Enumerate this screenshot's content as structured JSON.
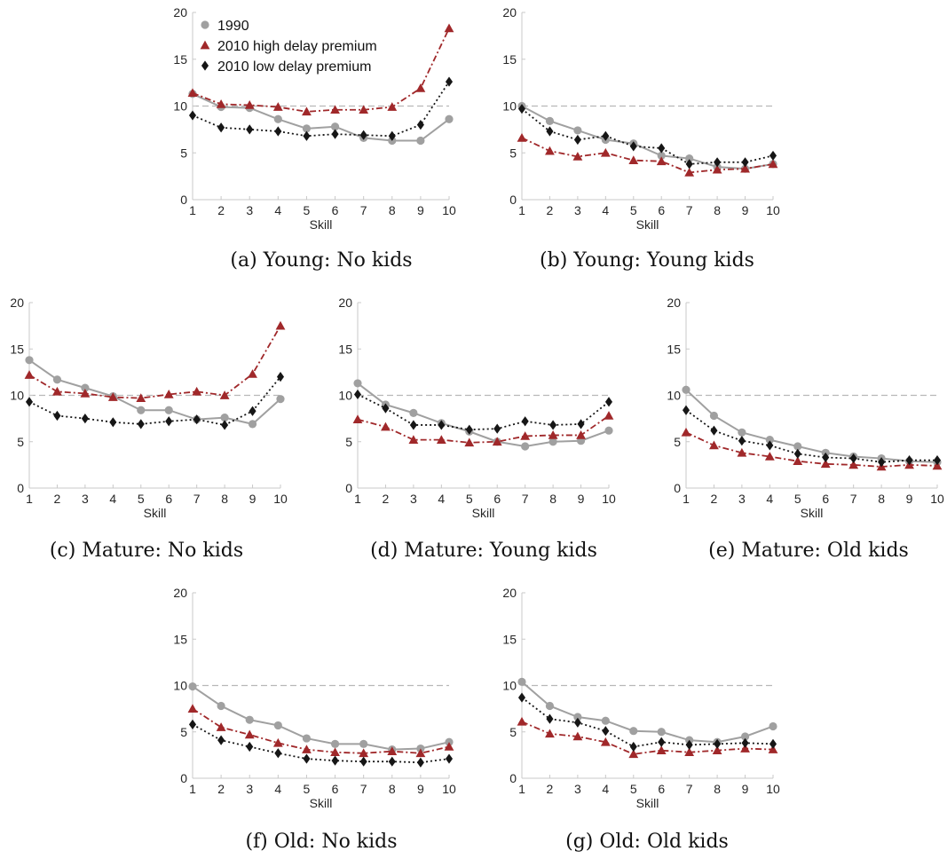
{
  "colors": {
    "s1990": "#a0a0a0",
    "high": "#a0282a",
    "low": "#161616",
    "ref": "#b8b8b8",
    "axis": "#c8c8c8"
  },
  "legend": [
    "1990",
    "2010 high delay premium",
    "2010 low delay premium"
  ],
  "chart_data": [
    {
      "type": "line",
      "caption": "(a) Young: No kids",
      "xlabel": "Skill",
      "x": [
        1,
        2,
        3,
        4,
        5,
        6,
        7,
        8,
        9,
        10
      ],
      "xlim": [
        1,
        10
      ],
      "ylim": [
        0,
        20
      ],
      "yticks": [
        0,
        5,
        10,
        15,
        20
      ],
      "reference_line": 10,
      "legend": "top-left",
      "series": [
        {
          "name": "1990",
          "values": [
            11.3,
            9.9,
            9.8,
            8.6,
            7.6,
            7.8,
            6.6,
            6.3,
            6.3,
            8.6
          ]
        },
        {
          "name": "2010 high delay premium",
          "values": [
            11.4,
            10.2,
            10.1,
            9.9,
            9.4,
            9.6,
            9.6,
            9.9,
            11.9,
            18.3
          ]
        },
        {
          "name": "2010 low delay premium",
          "values": [
            9.0,
            7.7,
            7.5,
            7.3,
            6.8,
            7.0,
            6.9,
            6.8,
            8.0,
            12.6
          ]
        }
      ]
    },
    {
      "type": "line",
      "caption": "(b) Young: Young kids",
      "xlabel": "Skill",
      "x": [
        1,
        2,
        3,
        4,
        5,
        6,
        7,
        8,
        9,
        10
      ],
      "xlim": [
        1,
        10
      ],
      "ylim": [
        0,
        20
      ],
      "yticks": [
        0,
        5,
        10,
        15,
        20
      ],
      "reference_line": 10,
      "series": [
        {
          "name": "1990",
          "values": [
            10.0,
            8.4,
            7.4,
            6.4,
            6.0,
            4.7,
            4.4,
            3.5,
            3.3,
            3.8
          ]
        },
        {
          "name": "2010 high delay premium",
          "values": [
            6.6,
            5.2,
            4.6,
            5.0,
            4.2,
            4.1,
            2.9,
            3.2,
            3.3,
            3.8
          ]
        },
        {
          "name": "2010 low delay premium",
          "values": [
            9.7,
            7.3,
            6.4,
            6.8,
            5.7,
            5.5,
            3.8,
            4.0,
            4.0,
            4.7
          ]
        }
      ]
    },
    {
      "type": "line",
      "caption": "(c) Mature: No kids",
      "xlabel": "Skill",
      "x": [
        1,
        2,
        3,
        4,
        5,
        6,
        7,
        8,
        9,
        10
      ],
      "xlim": [
        1,
        10
      ],
      "ylim": [
        0,
        20
      ],
      "yticks": [
        0,
        5,
        10,
        15,
        20
      ],
      "reference_line": 10,
      "series": [
        {
          "name": "1990",
          "values": [
            13.8,
            11.7,
            10.8,
            9.9,
            8.4,
            8.4,
            7.4,
            7.6,
            6.9,
            9.6
          ]
        },
        {
          "name": "2010 high delay premium",
          "values": [
            12.2,
            10.4,
            10.2,
            9.8,
            9.7,
            10.1,
            10.4,
            10.0,
            12.3,
            17.5
          ]
        },
        {
          "name": "2010 low delay premium",
          "values": [
            9.3,
            7.8,
            7.5,
            7.1,
            6.9,
            7.2,
            7.4,
            6.8,
            8.3,
            12.0
          ]
        }
      ]
    },
    {
      "type": "line",
      "caption": "(d) Mature: Young kids",
      "xlabel": "Skill",
      "x": [
        1,
        2,
        3,
        4,
        5,
        6,
        7,
        8,
        9,
        10
      ],
      "xlim": [
        1,
        10
      ],
      "ylim": [
        0,
        20
      ],
      "yticks": [
        0,
        5,
        10,
        15,
        20
      ],
      "reference_line": 10,
      "series": [
        {
          "name": "1990",
          "values": [
            11.3,
            9.0,
            8.1,
            7.0,
            6.1,
            5.0,
            4.5,
            5.0,
            5.1,
            6.2
          ]
        },
        {
          "name": "2010 high delay premium",
          "values": [
            7.4,
            6.6,
            5.2,
            5.2,
            4.9,
            5.0,
            5.6,
            5.7,
            5.7,
            7.8
          ]
        },
        {
          "name": "2010 low delay premium",
          "values": [
            10.1,
            8.6,
            6.8,
            6.8,
            6.3,
            6.4,
            7.2,
            6.8,
            6.9,
            9.3
          ]
        }
      ]
    },
    {
      "type": "line",
      "caption": "(e) Mature: Old kids",
      "xlabel": "Skill",
      "x": [
        1,
        2,
        3,
        4,
        5,
        6,
        7,
        8,
        9,
        10
      ],
      "xlim": [
        1,
        10
      ],
      "ylim": [
        0,
        20
      ],
      "yticks": [
        0,
        5,
        10,
        15,
        20
      ],
      "reference_line": 10,
      "series": [
        {
          "name": "1990",
          "values": [
            10.6,
            7.8,
            6.0,
            5.2,
            4.5,
            3.8,
            3.4,
            3.2,
            2.9,
            2.8
          ]
        },
        {
          "name": "2010 high delay premium",
          "values": [
            6.0,
            4.6,
            3.8,
            3.4,
            2.9,
            2.6,
            2.5,
            2.3,
            2.5,
            2.4
          ]
        },
        {
          "name": "2010 low delay premium",
          "values": [
            8.4,
            6.2,
            5.1,
            4.6,
            3.7,
            3.3,
            3.2,
            2.8,
            3.0,
            3.0
          ]
        }
      ]
    },
    {
      "type": "line",
      "caption": "(f) Old: No kids",
      "xlabel": "Skill",
      "x": [
        1,
        2,
        3,
        4,
        5,
        6,
        7,
        8,
        9,
        10
      ],
      "xlim": [
        1,
        10
      ],
      "ylim": [
        0,
        20
      ],
      "yticks": [
        0,
        5,
        10,
        15,
        20
      ],
      "reference_line": 10,
      "series": [
        {
          "name": "1990",
          "values": [
            9.9,
            7.8,
            6.3,
            5.7,
            4.3,
            3.7,
            3.7,
            3.1,
            3.2,
            3.9
          ]
        },
        {
          "name": "2010 high delay premium",
          "values": [
            7.5,
            5.5,
            4.7,
            3.8,
            3.1,
            2.8,
            2.7,
            2.9,
            2.7,
            3.4
          ]
        },
        {
          "name": "2010 low delay premium",
          "values": [
            5.8,
            4.1,
            3.4,
            2.7,
            2.1,
            1.9,
            1.8,
            1.8,
            1.7,
            2.1
          ]
        }
      ]
    },
    {
      "type": "line",
      "caption": "(g) Old: Old kids",
      "xlabel": "Skill",
      "x": [
        1,
        2,
        3,
        4,
        5,
        6,
        7,
        8,
        9,
        10
      ],
      "xlim": [
        1,
        10
      ],
      "ylim": [
        0,
        20
      ],
      "yticks": [
        0,
        5,
        10,
        15,
        20
      ],
      "reference_line": 10,
      "series": [
        {
          "name": "1990",
          "values": [
            10.4,
            7.8,
            6.6,
            6.2,
            5.1,
            5.0,
            4.1,
            3.9,
            4.5,
            5.6
          ]
        },
        {
          "name": "2010 high delay premium",
          "values": [
            6.1,
            4.8,
            4.5,
            3.9,
            2.6,
            3.0,
            2.8,
            3.0,
            3.2,
            3.1
          ]
        },
        {
          "name": "2010 low delay premium",
          "values": [
            8.7,
            6.4,
            6.0,
            5.1,
            3.4,
            3.9,
            3.6,
            3.7,
            3.8,
            3.7
          ]
        }
      ]
    }
  ]
}
